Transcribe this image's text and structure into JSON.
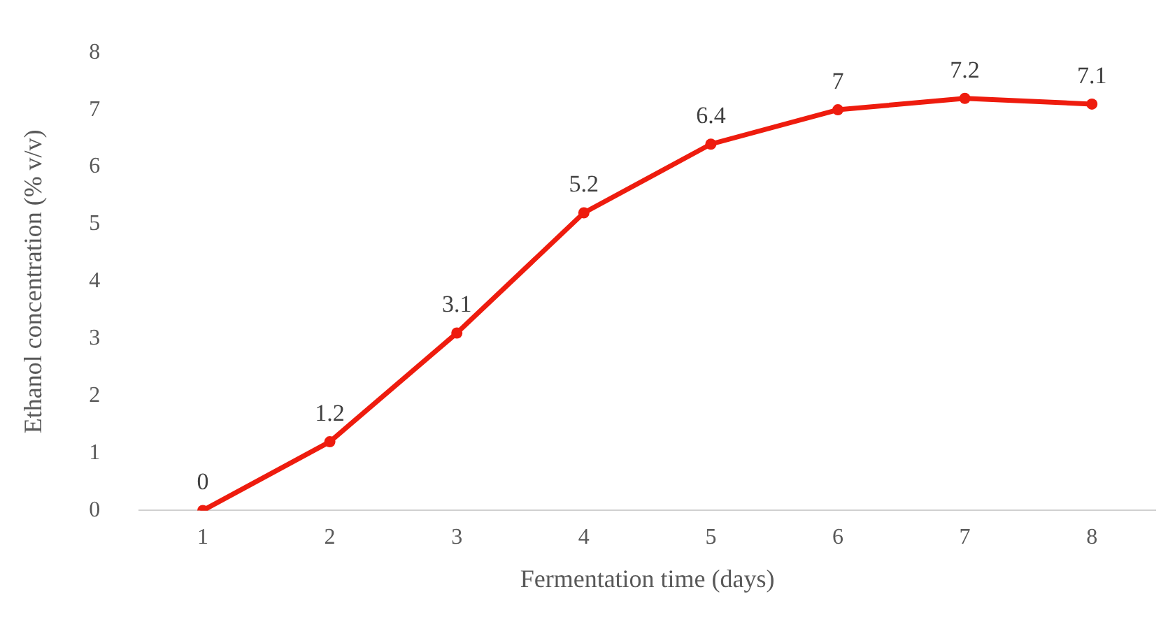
{
  "chart_data": {
    "type": "line",
    "xlabel": "Fermentation time (days)",
    "ylabel": "Ethanol concentration (% v/v)",
    "categories": [
      "1",
      "2",
      "3",
      "4",
      "5",
      "6",
      "7",
      "8"
    ],
    "series": [
      {
        "color": "#ee1c0e",
        "values": [
          0,
          1.2,
          3.1,
          5.2,
          6.4,
          7,
          7.2,
          7.1
        ]
      }
    ],
    "ylim": [
      0,
      8
    ],
    "yticks": [
      0,
      1,
      2,
      3,
      4,
      5,
      6,
      7,
      8
    ],
    "grid": false,
    "legend": false,
    "marker": "circle",
    "line_style": "solid",
    "data_labels": true
  }
}
